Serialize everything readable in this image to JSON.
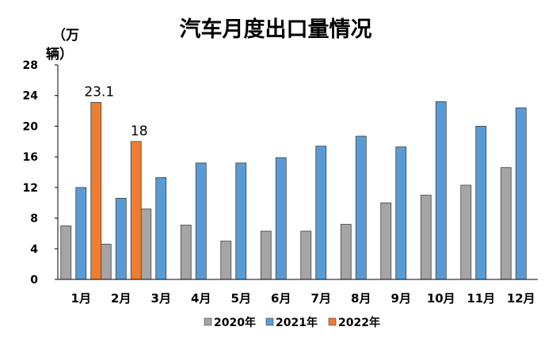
{
  "chart_data": {
    "type": "bar",
    "title": "汽车月度出口量情况",
    "ylabel_line1": "（万",
    "ylabel_line2": "辆）",
    "categories": [
      "1月",
      "2月",
      "3月",
      "4月",
      "5月",
      "6月",
      "7月",
      "8月",
      "9月",
      "10月",
      "11月",
      "12月"
    ],
    "series": [
      {
        "name": "2020年",
        "color": "#a5a5a5",
        "values": [
          7.0,
          4.6,
          9.2,
          7.1,
          5.0,
          6.3,
          6.3,
          7.2,
          10.0,
          11.0,
          12.3,
          14.6
        ]
      },
      {
        "name": "2021年",
        "color": "#5b9bd5",
        "values": [
          12.0,
          10.6,
          13.3,
          15.2,
          15.2,
          15.9,
          17.4,
          18.7,
          17.3,
          23.2,
          20.0,
          22.4
        ]
      },
      {
        "name": "2022年",
        "color": "#ed7d31",
        "values": [
          23.1,
          18.0,
          null,
          null,
          null,
          null,
          null,
          null,
          null,
          null,
          null,
          null
        ]
      }
    ],
    "data_labels": [
      {
        "series": 2,
        "index": 0,
        "text": "23.1"
      },
      {
        "series": 2,
        "index": 1,
        "text": "18"
      }
    ],
    "ylim": [
      0,
      28
    ],
    "yticks": [
      "0",
      "4",
      "8",
      "12",
      "16",
      "20",
      "24",
      "28"
    ],
    "grid": false,
    "legend": "bottom"
  }
}
